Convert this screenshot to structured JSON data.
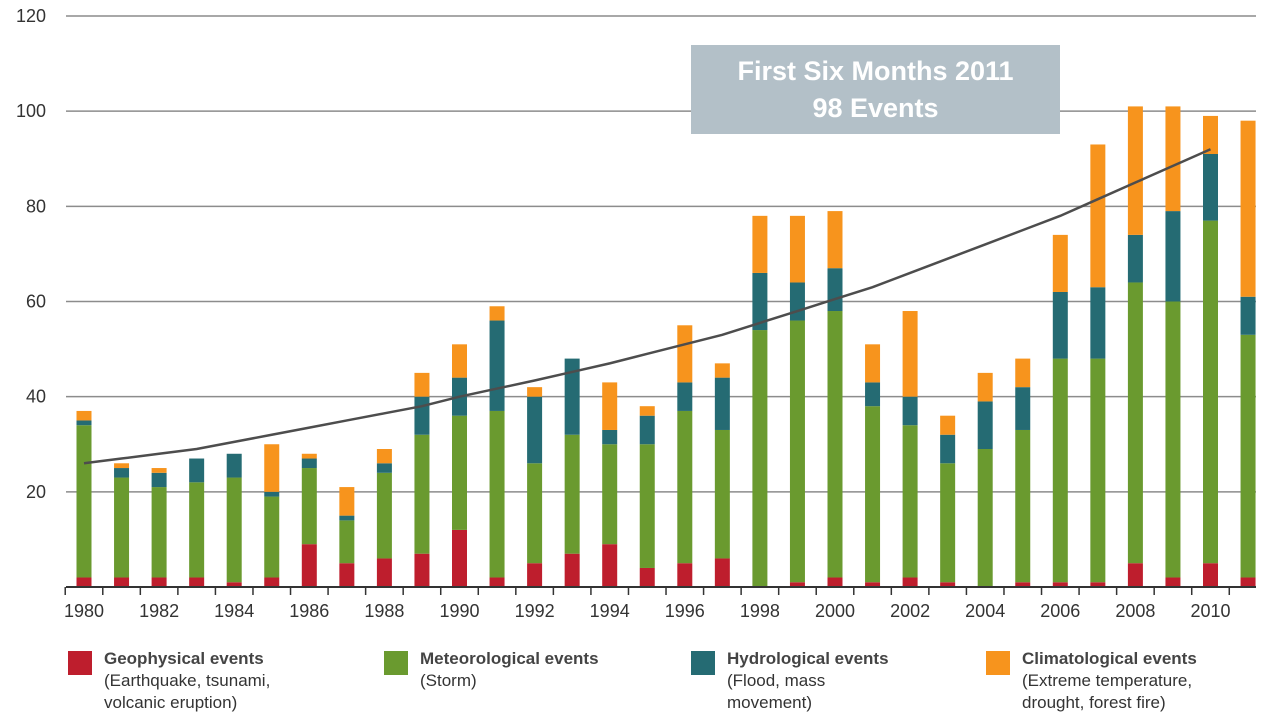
{
  "chart_data": {
    "type": "bar",
    "stacked": true,
    "title": "",
    "xlabel": "",
    "ylabel": "",
    "ylim": [
      0,
      120
    ],
    "yticks": [
      20,
      40,
      60,
      80,
      100,
      120
    ],
    "x": [
      1980,
      1981,
      1982,
      1983,
      1984,
      1985,
      1986,
      1987,
      1988,
      1989,
      1990,
      1991,
      1992,
      1993,
      1994,
      1995,
      1996,
      1997,
      1998,
      1999,
      2000,
      2001,
      2002,
      2003,
      2004,
      2005,
      2006,
      2007,
      2008,
      2009,
      2010,
      2011
    ],
    "xtick_labels": [
      "1980",
      "1982",
      "1984",
      "1986",
      "1988",
      "1990",
      "1992",
      "1994",
      "1996",
      "1998",
      "2000",
      "2002",
      "2004",
      "2006",
      "2008",
      "2010"
    ],
    "grid": "horizontal",
    "series": [
      {
        "name": "Geophysical events",
        "color": "#be1e2d",
        "values": [
          2,
          2,
          2,
          2,
          1,
          2,
          9,
          5,
          6,
          7,
          12,
          2,
          5,
          7,
          9,
          4,
          5,
          6,
          0,
          1,
          2,
          1,
          2,
          1,
          0,
          1,
          1,
          1,
          5,
          2,
          5,
          2
        ]
      },
      {
        "name": "Meteorological events",
        "color": "#6a9a2f",
        "values": [
          32,
          21,
          19,
          20,
          22,
          17,
          16,
          9,
          18,
          25,
          24,
          35,
          21,
          25,
          21,
          26,
          32,
          27,
          54,
          55,
          56,
          37,
          32,
          25,
          29,
          32,
          47,
          47,
          59,
          58,
          72,
          51
        ]
      },
      {
        "name": "Hydrological events",
        "color": "#256b73",
        "values": [
          1,
          2,
          3,
          5,
          5,
          1,
          2,
          1,
          2,
          8,
          8,
          19,
          14,
          16,
          3,
          6,
          6,
          11,
          12,
          8,
          9,
          5,
          6,
          6,
          10,
          9,
          14,
          15,
          10,
          19,
          14,
          8
        ]
      },
      {
        "name": "Climatological events",
        "color": "#f7941d",
        "values": [
          2,
          1,
          1,
          0,
          0,
          10,
          1,
          6,
          3,
          5,
          7,
          3,
          2,
          0,
          10,
          2,
          12,
          3,
          12,
          14,
          12,
          8,
          18,
          4,
          6,
          6,
          12,
          30,
          27,
          22,
          8,
          37
        ]
      }
    ],
    "trend": {
      "color": "#4d4d4d",
      "values": [
        26,
        27,
        28,
        29,
        30.5,
        32,
        33.5,
        35,
        36.5,
        38,
        40,
        41.7,
        43.4,
        45.2,
        47,
        49,
        51,
        53,
        55.5,
        58,
        60.5,
        63,
        66,
        69,
        72,
        75,
        78,
        81.5,
        85,
        88.5,
        92
      ]
    },
    "annotation": {
      "line1": "First Six Months 2011",
      "line2": "98 Events"
    },
    "legend_placement": "bottom"
  },
  "legend": [
    {
      "title": "Geophysical events",
      "desc1": "(Earthquake, tsunami,",
      "desc2": "volcanic eruption)",
      "color": "#be1e2d"
    },
    {
      "title": "Meteorological events",
      "desc1": "(Storm)",
      "desc2": "",
      "color": "#6a9a2f"
    },
    {
      "title": "Hydrological events",
      "desc1": "(Flood, mass",
      "desc2": "movement)",
      "color": "#256b73"
    },
    {
      "title": "Climatological events",
      "desc1": "(Extreme temperature,",
      "desc2": "drought, forest fire)",
      "color": "#f7941d"
    }
  ]
}
